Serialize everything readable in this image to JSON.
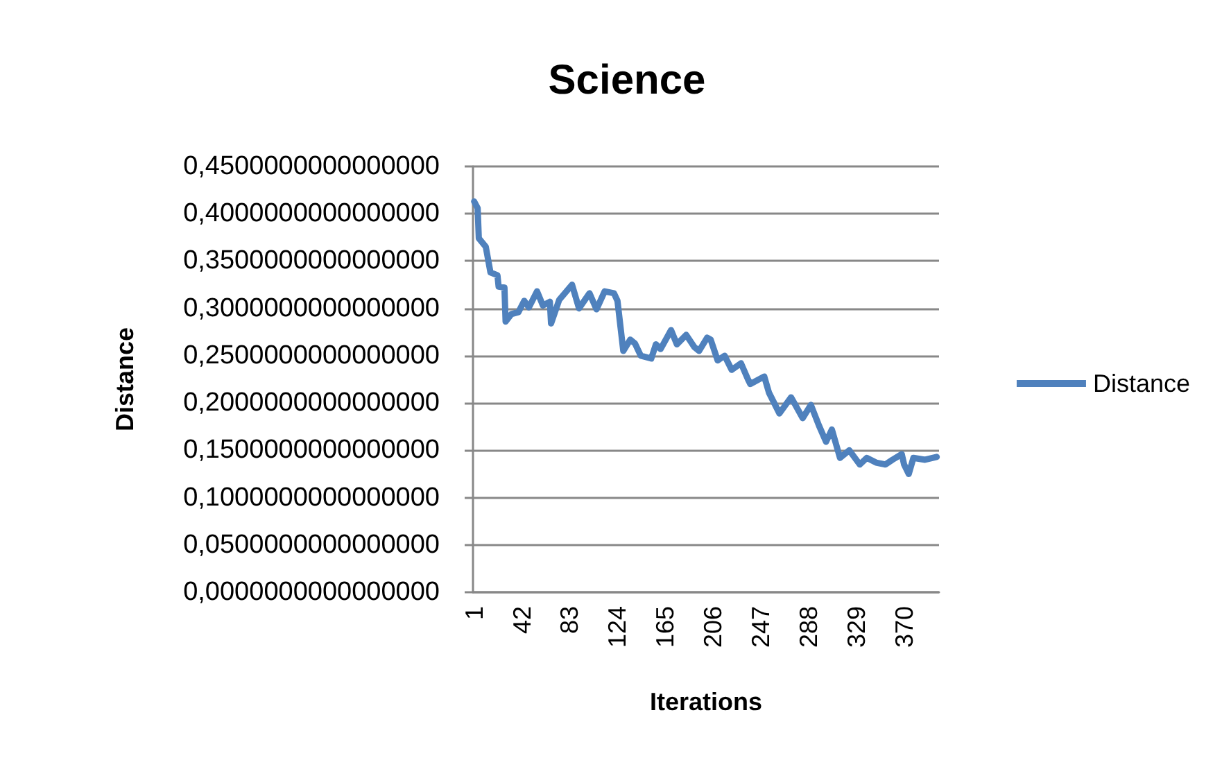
{
  "chart_data": {
    "type": "line",
    "title": "Science",
    "xlabel": "Iterations",
    "ylabel": "Distance",
    "xlim": [
      0,
      400
    ],
    "xticks": [
      1,
      42,
      83,
      124,
      165,
      206,
      247,
      288,
      329,
      370
    ],
    "ylim": [
      0,
      0.45
    ],
    "yticks": [
      {
        "value": 0,
        "label": "0,0000000000000000"
      },
      {
        "value": 0.05,
        "label": "0,0500000000000000"
      },
      {
        "value": 0.1,
        "label": "0,1000000000000000"
      },
      {
        "value": 0.15,
        "label": "0,1500000000000000"
      },
      {
        "value": 0.2,
        "label": "0,2000000000000000"
      },
      {
        "value": 0.25,
        "label": "0,2500000000000000"
      },
      {
        "value": 0.3,
        "label": "0,3000000000000000"
      },
      {
        "value": 0.35,
        "label": "0,3500000000000000"
      },
      {
        "value": 0.4,
        "label": "0,4000000000000000"
      },
      {
        "value": 0.45,
        "label": "0,4500000000000000"
      }
    ],
    "grid": "y",
    "legend": "right",
    "marker": "none",
    "line_style": "solid",
    "series": [
      {
        "name": "Distance",
        "color": "#4f81bd",
        "x": [
          1,
          4,
          5,
          11,
          15,
          21,
          22,
          27,
          28,
          33,
          39,
          44,
          48,
          55,
          60,
          66,
          67,
          74,
          85,
          91,
          100,
          106,
          113,
          121,
          124,
          129,
          135,
          139,
          144,
          153,
          157,
          161,
          170,
          175,
          183,
          190,
          194,
          201,
          204,
          210,
          216,
          222,
          230,
          236,
          238,
          250,
          254,
          263,
          273,
          283,
          290,
          297,
          303,
          308,
          315,
          323,
          332,
          338,
          346,
          354,
          360,
          368,
          370,
          374,
          378,
          388,
          398
        ],
        "values": [
          0.413,
          0.406,
          0.374,
          0.365,
          0.338,
          0.335,
          0.323,
          0.322,
          0.286,
          0.294,
          0.296,
          0.308,
          0.301,
          0.318,
          0.303,
          0.307,
          0.284,
          0.309,
          0.325,
          0.3,
          0.316,
          0.299,
          0.318,
          0.316,
          0.308,
          0.255,
          0.267,
          0.263,
          0.25,
          0.247,
          0.262,
          0.257,
          0.277,
          0.262,
          0.272,
          0.259,
          0.255,
          0.269,
          0.267,
          0.245,
          0.25,
          0.235,
          0.242,
          0.225,
          0.22,
          0.228,
          0.211,
          0.189,
          0.206,
          0.184,
          0.198,
          0.176,
          0.159,
          0.172,
          0.142,
          0.15,
          0.135,
          0.142,
          0.137,
          0.135,
          0.14,
          0.146,
          0.135,
          0.125,
          0.142,
          0.14,
          0.143
        ]
      }
    ]
  }
}
